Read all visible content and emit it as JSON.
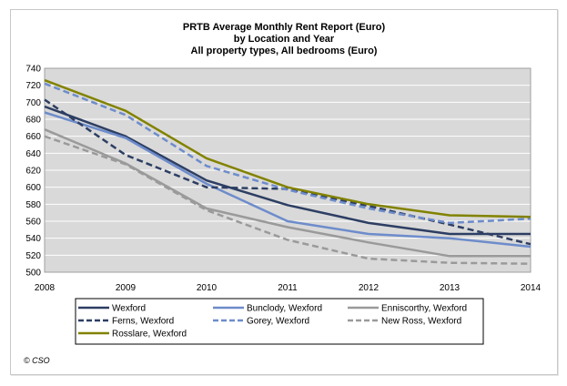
{
  "chart_data": {
    "type": "line",
    "title": [
      "PRTB Average Monthly Rent Report (Euro)",
      "by Location and Year",
      "All property types, All bedrooms (Euro)"
    ],
    "x": [
      2008,
      2009,
      2010,
      2011,
      2012,
      2013,
      2014
    ],
    "ylim": [
      500,
      740
    ],
    "yticks": [
      500,
      520,
      540,
      560,
      580,
      600,
      620,
      640,
      660,
      680,
      700,
      720,
      740
    ],
    "grid": "horizontal",
    "legend_position": "bottom",
    "series": [
      {
        "name": "Wexford",
        "values": [
          695,
          660,
          608,
          579,
          558,
          545,
          545
        ],
        "color": "#2d3e63",
        "dash": "solid"
      },
      {
        "name": "Bunclody, Wexford",
        "values": [
          688,
          658,
          604,
          560,
          545,
          540,
          530
        ],
        "color": "#6d8ccb",
        "dash": "solid"
      },
      {
        "name": "Enniscorthy, Wexford",
        "values": [
          668,
          628,
          575,
          553,
          535,
          519,
          519
        ],
        "color": "#9a9a9a",
        "dash": "solid"
      },
      {
        "name": "Ferns, Wexford",
        "values": [
          703,
          638,
          600,
          598,
          578,
          556,
          533
        ],
        "color": "#2d3e63",
        "dash": "dashed"
      },
      {
        "name": "Gorey, Wexford",
        "values": [
          722,
          685,
          625,
          597,
          575,
          558,
          563
        ],
        "color": "#6d8ccb",
        "dash": "dashed"
      },
      {
        "name": "New Ross, Wexford",
        "values": [
          660,
          627,
          573,
          538,
          516,
          511,
          510
        ],
        "color": "#9a9a9a",
        "dash": "dashed"
      },
      {
        "name": "Rosslare, Wexford",
        "values": [
          726,
          690,
          634,
          600,
          580,
          567,
          565
        ],
        "color": "#828200",
        "dash": "solid"
      }
    ],
    "footer": "© CSO"
  }
}
